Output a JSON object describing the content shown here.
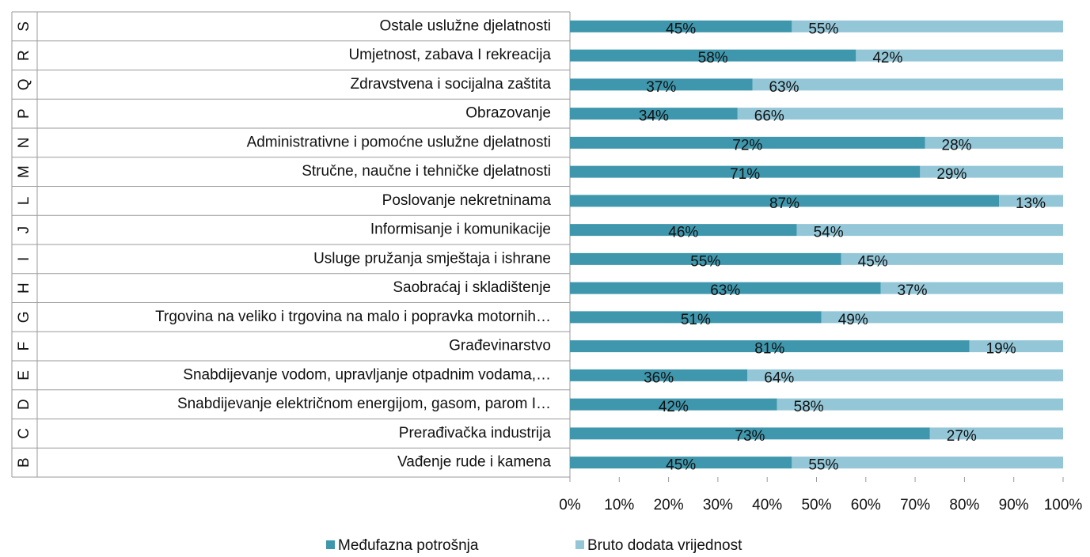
{
  "chart_data": {
    "type": "stacked_bar_horizontal",
    "codes": [
      "S",
      "R",
      "Q",
      "P",
      "N",
      "M",
      "L",
      "J",
      "I",
      "H",
      "G",
      "F",
      "E",
      "D",
      "C",
      "B"
    ],
    "categories": [
      "Ostale uslužne djelatnosti",
      "Umjetnost, zabava I rekreacija",
      "Zdravstvena i socijalna zaštita",
      "Obrazovanje",
      "Administrativne i pomoćne uslužne djelatnosti",
      "Stručne, naučne i tehničke djelatnosti",
      "Poslovanje nekretninama",
      "Informisanje i komunikacije",
      "Usluge pružanja smještaja i ishrane",
      "Saobraćaj i skladištenje",
      "Trgovina na veliko i trgovina na malo i popravka motornih…",
      "Građevinarstvo",
      "Snabdijevanje vodom, upravljanje otpadnim vodama,…",
      "Snabdijevanje električnom energijom, gasom, parom I…",
      "Prerađivačka industrija",
      "Vađenje rude i kamena"
    ],
    "series": [
      {
        "name": "Međufazna potrošnja",
        "color": "#3f97ad",
        "values": [
          45,
          58,
          37,
          34,
          72,
          71,
          87,
          46,
          55,
          63,
          51,
          81,
          36,
          42,
          73,
          45
        ],
        "value_labels": [
          "45%",
          "58%",
          "37%",
          "34%",
          "72%",
          "71%",
          "87%",
          "46%",
          "55%",
          "63%",
          "51%",
          "81%",
          "36%",
          "42%",
          "73%",
          "45%"
        ]
      },
      {
        "name": "Bruto dodata vrijednost",
        "color": "#93c6d7",
        "values": [
          55,
          42,
          63,
          66,
          28,
          29,
          13,
          54,
          45,
          37,
          49,
          19,
          64,
          58,
          27,
          55
        ],
        "value_labels": [
          "55%",
          "42%",
          "63%",
          "66%",
          "28%",
          "29%",
          "13%",
          "54%",
          "45%",
          "37%",
          "49%",
          "19%",
          "64%",
          "58%",
          "27%",
          "55%"
        ]
      }
    ],
    "xlim": [
      0,
      100
    ],
    "xticks": [
      {
        "value": 0,
        "label": "0%"
      },
      {
        "value": 10,
        "label": "10%"
      },
      {
        "value": 20,
        "label": "20%"
      },
      {
        "value": 30,
        "label": "30%"
      },
      {
        "value": 40,
        "label": "40%"
      },
      {
        "value": 50,
        "label": "50%"
      },
      {
        "value": 60,
        "label": "60%"
      },
      {
        "value": 70,
        "label": "70%"
      },
      {
        "value": 80,
        "label": "80%"
      },
      {
        "value": 90,
        "label": "90%"
      },
      {
        "value": 100,
        "label": "100%"
      }
    ],
    "legend": "bottom"
  }
}
